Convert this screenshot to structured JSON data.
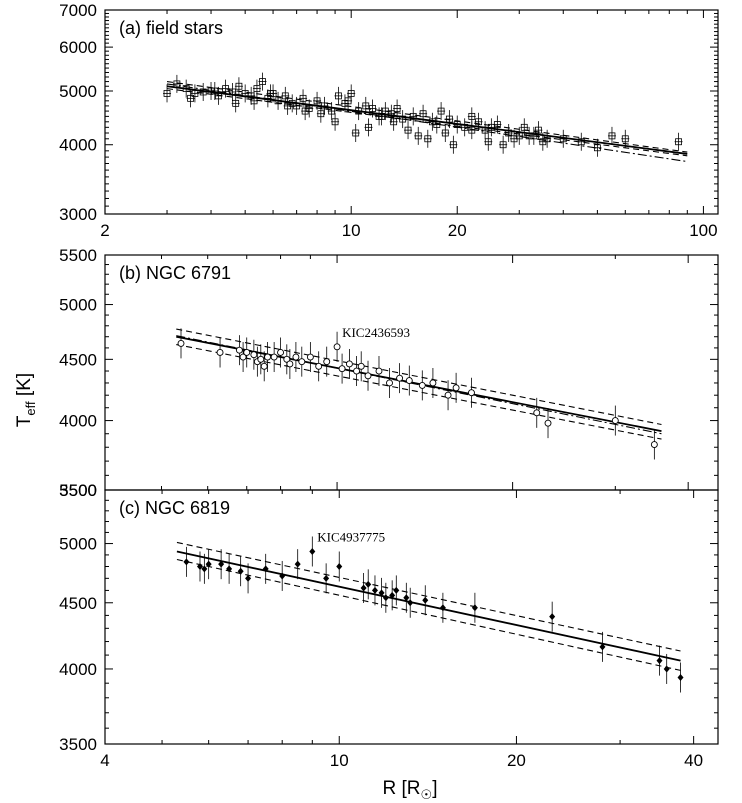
{
  "y_label_main": "T",
  "y_label_sub": "eff",
  "y_label_unit": " [K]",
  "x_label_main": "R [R",
  "x_label_sub": "☉",
  "x_label_close": "]",
  "chart_data": [
    {
      "type": "scatter",
      "panel_title": "(a) field stars",
      "marker": "open-square",
      "xscale": "log",
      "yscale": "log",
      "xlim": [
        2,
        110
      ],
      "ylim": [
        3000,
        7000
      ],
      "xticks": [
        2,
        10,
        20,
        100
      ],
      "yticks": [
        3000,
        4000,
        5000,
        6000,
        7000
      ],
      "series": [
        {
          "x": [
            3.0,
            3.2,
            3.4,
            3.6,
            3.8,
            4.0,
            4.2,
            4.4,
            4.6,
            4.8,
            5.0,
            5.2,
            5.4,
            5.6,
            5.8,
            6.0,
            6.2,
            6.5,
            6.8,
            7.0,
            7.3,
            7.6,
            8.0,
            8.4,
            8.8,
            9.2,
            9.6,
            10.0,
            10.5,
            11,
            11.5,
            12,
            12.5,
            13,
            13.5,
            14,
            15,
            16,
            17,
            18,
            19,
            20,
            21,
            22,
            23,
            24,
            25,
            26,
            28,
            30,
            31,
            32,
            34,
            36,
            40,
            45,
            50,
            55,
            60,
            85,
            3.5,
            4.1,
            4.7,
            5.3,
            5.9,
            6.6,
            7.4,
            8.2,
            9.0,
            9.8,
            10.3,
            11.2,
            12.2,
            13.2,
            14.5,
            15.5,
            16.5,
            17.5,
            18.5,
            19.5,
            22,
            24.5,
            27,
            29,
            33,
            35
          ],
          "y": [
            4950,
            5150,
            5050,
            4950,
            4980,
            5000,
            4900,
            5050,
            4980,
            5100,
            4950,
            4900,
            5050,
            5200,
            4850,
            4950,
            4800,
            4900,
            4750,
            4700,
            4850,
            4650,
            4800,
            4700,
            4600,
            4900,
            4750,
            4950,
            4600,
            4700,
            4650,
            4500,
            4600,
            4550,
            4650,
            4450,
            4500,
            4550,
            4400,
            4600,
            4450,
            4350,
            4300,
            4500,
            4400,
            4250,
            4300,
            4350,
            4200,
            4150,
            4300,
            4150,
            4250,
            4100,
            4100,
            4050,
            3950,
            4150,
            4100,
            4050,
            4850,
            5000,
            4750,
            4800,
            4950,
            4700,
            4600,
            4550,
            4400,
            4800,
            4200,
            4300,
            4500,
            4400,
            4250,
            4150,
            4100,
            4350,
            4200,
            4000,
            4250,
            4050,
            4000,
            4100,
            4150,
            4050
          ]
        }
      ],
      "fit_lines": [
        {
          "style": "solid",
          "x": [
            3.0,
            90
          ],
          "y": [
            5100,
            3850
          ]
        },
        {
          "style": "dashed",
          "x": [
            3.0,
            90
          ],
          "y": [
            5200,
            3880
          ]
        },
        {
          "style": "dashed",
          "x": [
            3.0,
            90
          ],
          "y": [
            5050,
            3820
          ]
        },
        {
          "style": "dash-dot",
          "x": [
            3.0,
            90
          ],
          "y": [
            5150,
            3730
          ]
        }
      ]
    },
    {
      "type": "scatter",
      "panel_title": "(b) NGC 6791",
      "marker": "open-circle",
      "xscale": "log",
      "yscale": "log",
      "xlim": [
        4,
        45
      ],
      "ylim": [
        3500,
        5500
      ],
      "xticks": [
        4,
        10,
        20,
        40
      ],
      "yticks": [
        3500,
        4000,
        4500,
        5000,
        5500
      ],
      "annotations": [
        {
          "text": "KIC2436593",
          "x": 10.0,
          "y": 4610
        }
      ],
      "series": [
        {
          "x": [
            5.4,
            6.3,
            6.8,
            6.9,
            7.0,
            7.2,
            7.3,
            7.4,
            7.5,
            7.6,
            7.8,
            8.0,
            8.2,
            8.3,
            8.5,
            8.7,
            9.0,
            9.3,
            9.6,
            10.0,
            10.2,
            10.5,
            10.8,
            11,
            11.3,
            11.8,
            12.3,
            12.8,
            13.3,
            14,
            14.6,
            15.5,
            16,
            17,
            22,
            23,
            30,
            35
          ],
          "y": [
            4640,
            4560,
            4580,
            4520,
            4560,
            4540,
            4480,
            4500,
            4440,
            4520,
            4520,
            4560,
            4500,
            4460,
            4520,
            4480,
            4520,
            4440,
            4480,
            4610,
            4420,
            4460,
            4400,
            4440,
            4360,
            4400,
            4300,
            4340,
            4320,
            4280,
            4300,
            4200,
            4260,
            4220,
            4060,
            3980,
            4000,
            3820
          ]
        }
      ],
      "fit_lines": [
        {
          "style": "solid",
          "x": [
            5.3,
            36
          ],
          "y": [
            4700,
            3920
          ]
        },
        {
          "style": "dashed",
          "x": [
            5.3,
            36
          ],
          "y": [
            4770,
            3970
          ]
        },
        {
          "style": "dashed",
          "x": [
            5.3,
            36
          ],
          "y": [
            4630,
            3860
          ]
        },
        {
          "style": "dash-dot",
          "x": [
            5.3,
            36
          ],
          "y": [
            4710,
            3900
          ]
        }
      ]
    },
    {
      "type": "scatter",
      "panel_title": "(c) NGC 6819",
      "marker": "filled-diamond",
      "xscale": "log",
      "yscale": "log",
      "xlim": [
        4,
        44
      ],
      "ylim": [
        3500,
        5500
      ],
      "xticks": [
        4,
        10,
        20,
        40
      ],
      "yticks": [
        3500,
        4000,
        4500,
        5000,
        5500
      ],
      "annotations": [
        {
          "text": "KIC4937775",
          "x": 9.0,
          "y": 4930
        }
      ],
      "series": [
        {
          "x": [
            5.5,
            5.8,
            5.9,
            6.0,
            6.3,
            6.5,
            6.8,
            7.0,
            7.5,
            8.0,
            8.5,
            9.0,
            9.5,
            10.0,
            11.0,
            11.2,
            11.5,
            11.8,
            12,
            12.3,
            12.5,
            13,
            13.2,
            14,
            15,
            17,
            23,
            28,
            35,
            36,
            38
          ],
          "y": [
            4840,
            4800,
            4780,
            4820,
            4820,
            4780,
            4760,
            4700,
            4780,
            4720,
            4820,
            4930,
            4700,
            4800,
            4620,
            4650,
            4600,
            4580,
            4540,
            4560,
            4600,
            4540,
            4500,
            4520,
            4460,
            4460,
            4390,
            4160,
            4060,
            4000,
            3940
          ]
        }
      ],
      "fit_lines": [
        {
          "style": "solid",
          "x": [
            5.3,
            38
          ],
          "y": [
            4930,
            4060
          ]
        },
        {
          "style": "dashed",
          "x": [
            5.3,
            38
          ],
          "y": [
            5010,
            4130
          ]
        },
        {
          "style": "dashed",
          "x": [
            5.3,
            38
          ],
          "y": [
            4860,
            3990
          ]
        },
        {
          "style": "dash-dot",
          "x": [
            5.3,
            38
          ],
          "y": [
            4930,
            4060
          ]
        }
      ]
    }
  ]
}
